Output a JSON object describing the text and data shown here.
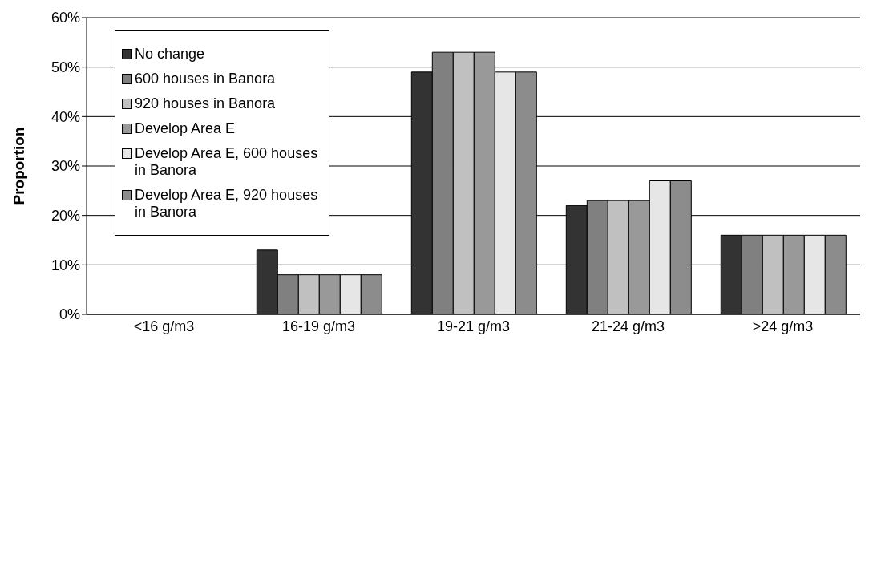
{
  "chart_data": {
    "type": "bar",
    "ylabel": "Proportion",
    "categories": [
      "<16 g/m3",
      "16-19 g/m3",
      "19-21 g/m3",
      "21-24 g/m3",
      ">24 g/m3"
    ],
    "series": [
      {
        "name": "No change",
        "color": "#333333",
        "values": [
          0,
          13,
          49,
          22,
          16
        ]
      },
      {
        "name": "600 houses in Banora",
        "color": "#808080",
        "values": [
          0,
          8,
          53,
          23,
          16
        ]
      },
      {
        "name": "920 houses in Banora",
        "color": "#c0c0c0",
        "values": [
          0,
          8,
          53,
          23,
          16
        ]
      },
      {
        "name": "Develop Area E",
        "color": "#999999",
        "values": [
          0,
          8,
          53,
          23,
          16
        ]
      },
      {
        "name": "Develop Area E, 600 houses in Banora",
        "color": "#e6e6e6",
        "values": [
          0,
          8,
          49,
          27,
          16
        ]
      },
      {
        "name": "Develop Area E, 920 houses in Banora",
        "color": "#8c8c8c",
        "values": [
          0,
          8,
          49,
          27,
          16
        ]
      }
    ],
    "ylim": [
      0,
      60
    ],
    "yticks": [
      {
        "value": 0,
        "label": "0%"
      },
      {
        "value": 10,
        "label": "10%"
      },
      {
        "value": 20,
        "label": "20%"
      },
      {
        "value": 30,
        "label": "30%"
      },
      {
        "value": 40,
        "label": "40%"
      },
      {
        "value": 50,
        "label": "50%"
      },
      {
        "value": 60,
        "label": "60%"
      }
    ],
    "grid": "y",
    "legend": "top left"
  }
}
